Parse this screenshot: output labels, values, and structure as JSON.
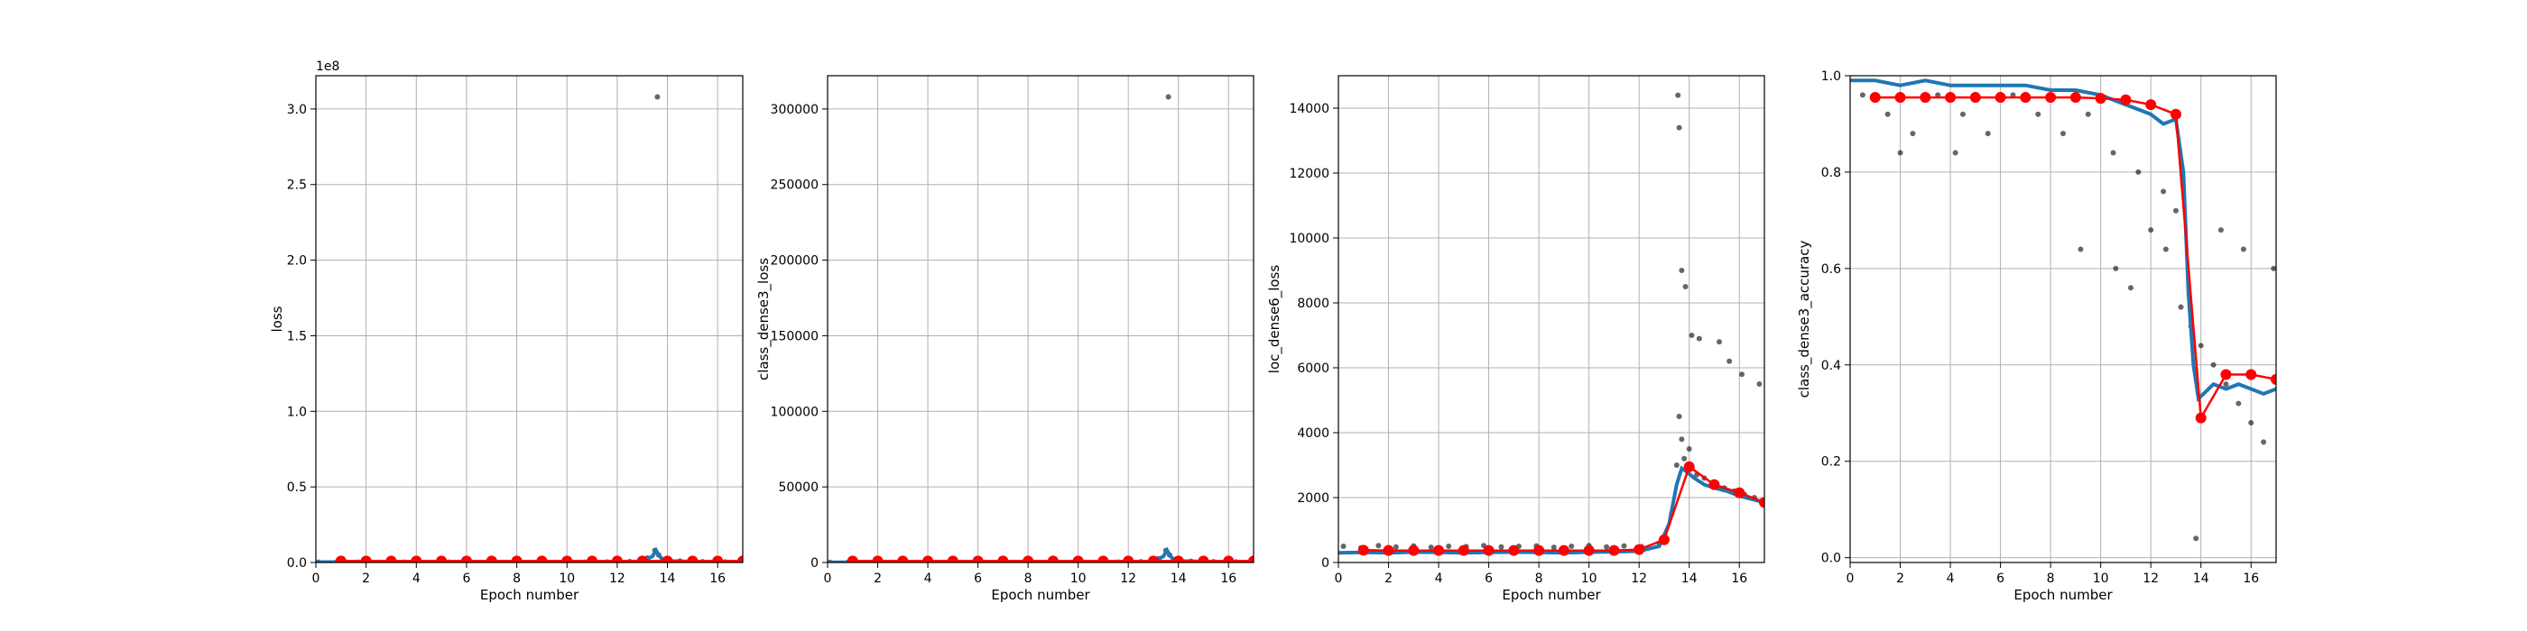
{
  "colors": {
    "scatter": "#000000",
    "smoothed": "#1f77b4",
    "epoch_mean": "#ff0000",
    "grid": "#b0b0b0"
  },
  "chart_data": [
    {
      "type": "scatter",
      "xlabel": "Epoch number",
      "ylabel": "loss",
      "offset_text": "1e8",
      "xlim": [
        0,
        17
      ],
      "ylim": [
        0,
        3.22
      ],
      "xticks": [
        0,
        2,
        4,
        6,
        8,
        10,
        12,
        14,
        16
      ],
      "yticks": [
        0.0,
        0.5,
        1.0,
        1.5,
        2.0,
        2.5,
        3.0
      ],
      "ytick_labels": [
        "0.0",
        "0.5",
        "1.0",
        "1.5",
        "2.0",
        "2.5",
        "3.0"
      ],
      "grid": true,
      "series": [
        {
          "type": "scatter",
          "x": [
            0.1,
            0.8,
            1.7,
            2.6,
            3.5,
            4.4,
            5.3,
            6.2,
            7.1,
            8.0,
            8.9,
            9.8,
            10.7,
            11.6,
            12.5,
            13.2,
            13.5,
            13.6,
            13.65,
            13.8,
            14.5,
            15.4,
            16.3,
            16.9
          ],
          "y": [
            0.002,
            0.001,
            0.002,
            0.001,
            0.002,
            0.001,
            0.002,
            0.001,
            0.002,
            0.001,
            0.002,
            0.001,
            0.002,
            0.004,
            0.006,
            0.03,
            0.08,
            3.08,
            0.05,
            0.02,
            0.01,
            0.005,
            0.004,
            0.003
          ]
        },
        {
          "type": "line",
          "x": [
            0,
            2,
            4,
            6,
            8,
            10,
            12,
            13,
            13.4,
            13.55,
            13.65,
            13.8,
            14,
            15,
            16,
            17
          ],
          "y": [
            0.003,
            0.003,
            0.003,
            0.003,
            0.003,
            0.003,
            0.004,
            0.008,
            0.04,
            0.08,
            0.05,
            0.02,
            0.01,
            0.006,
            0.005,
            0.005
          ]
        },
        {
          "type": "markers",
          "x": [
            1,
            2,
            3,
            4,
            5,
            6,
            7,
            8,
            9,
            10,
            11,
            12,
            13,
            14,
            15,
            16,
            17
          ],
          "y": [
            0.01,
            0.01,
            0.01,
            0.01,
            0.01,
            0.01,
            0.01,
            0.01,
            0.01,
            0.01,
            0.01,
            0.01,
            0.01,
            0.01,
            0.01,
            0.01,
            0.01
          ]
        }
      ]
    },
    {
      "type": "scatter",
      "xlabel": "Epoch number",
      "ylabel": "class_dense3_loss",
      "xlim": [
        0,
        17
      ],
      "ylim": [
        0,
        322000
      ],
      "xticks": [
        0,
        2,
        4,
        6,
        8,
        10,
        12,
        14,
        16
      ],
      "yticks": [
        0,
        50000,
        100000,
        150000,
        200000,
        250000,
        300000
      ],
      "ytick_labels": [
        "0",
        "50000",
        "100000",
        "150000",
        "200000",
        "250000",
        "300000"
      ],
      "grid": true,
      "series": [
        {
          "type": "scatter",
          "x": [
            0.1,
            0.8,
            1.7,
            2.6,
            3.5,
            4.4,
            5.3,
            6.2,
            7.1,
            8.0,
            8.9,
            9.8,
            10.7,
            11.6,
            12.5,
            13.2,
            13.5,
            13.6,
            13.65,
            13.8,
            14.5,
            15.4,
            16.3,
            16.9
          ],
          "y": [
            100,
            50,
            100,
            50,
            100,
            50,
            100,
            50,
            100,
            50,
            100,
            50,
            100,
            300,
            500,
            2500,
            8000,
            308000,
            5000,
            2000,
            800,
            500,
            400,
            300
          ]
        },
        {
          "type": "line",
          "x": [
            0,
            2,
            4,
            6,
            8,
            10,
            12,
            13,
            13.4,
            13.55,
            13.65,
            13.8,
            14,
            15,
            16,
            17
          ],
          "y": [
            200,
            200,
            200,
            200,
            200,
            200,
            300,
            700,
            4000,
            8000,
            5000,
            2000,
            1000,
            600,
            500,
            500
          ]
        },
        {
          "type": "markers",
          "x": [
            1,
            2,
            3,
            4,
            5,
            6,
            7,
            8,
            9,
            10,
            11,
            12,
            13,
            14,
            15,
            16,
            17
          ],
          "y": [
            1000,
            1000,
            1000,
            1000,
            1000,
            1000,
            1000,
            1000,
            1000,
            1000,
            1000,
            1000,
            1000,
            1000,
            1000,
            1000,
            1000
          ]
        }
      ]
    },
    {
      "type": "scatter",
      "xlabel": "Epoch number",
      "ylabel": "loc_dense6_loss",
      "xlim": [
        0,
        17
      ],
      "ylim": [
        0,
        15000
      ],
      "xticks": [
        0,
        2,
        4,
        6,
        8,
        10,
        12,
        14,
        16
      ],
      "yticks": [
        0,
        2000,
        4000,
        6000,
        8000,
        10000,
        12000,
        14000
      ],
      "ytick_labels": [
        "0",
        "2000",
        "4000",
        "6000",
        "8000",
        "10000",
        "12000",
        "14000"
      ],
      "grid": true,
      "series": [
        {
          "type": "scatter",
          "x": [
            0.2,
            0.9,
            1.6,
            2.3,
            3.0,
            3.7,
            4.4,
            5.1,
            5.8,
            6.5,
            7.2,
            7.9,
            8.6,
            9.3,
            10.0,
            10.7,
            11.4,
            12.1,
            12.8,
            13.3,
            13.5,
            13.6,
            13.7,
            13.8,
            13.9,
            14.0,
            14.3,
            14.6,
            15.0,
            15.4,
            15.8,
            16.2,
            16.6,
            17.0,
            13.55,
            13.6,
            13.7,
            13.85,
            14.1,
            14.4,
            15.2,
            15.6,
            16.1,
            16.8
          ],
          "y": [
            500,
            450,
            520,
            480,
            510,
            470,
            500,
            490,
            520,
            480,
            500,
            510,
            470,
            500,
            520,
            480,
            510,
            490,
            600,
            1500,
            3000,
            4500,
            3800,
            3200,
            2900,
            3500,
            2700,
            2600,
            2400,
            2300,
            2200,
            2100,
            2000,
            1900,
            14400,
            13400,
            9000,
            8500,
            7000,
            6900,
            6800,
            6200,
            5800,
            5500
          ]
        },
        {
          "type": "line",
          "x": [
            0,
            1,
            2,
            3,
            4,
            5,
            6,
            7,
            8,
            9,
            10,
            11,
            12,
            12.8,
            13.2,
            13.5,
            13.7,
            13.9,
            14.2,
            14.6,
            15,
            15.5,
            16,
            16.5,
            17
          ],
          "y": [
            300,
            310,
            300,
            320,
            310,
            300,
            310,
            320,
            310,
            300,
            320,
            330,
            350,
            500,
            1200,
            2400,
            2900,
            2800,
            2600,
            2400,
            2300,
            2200,
            2050,
            1950,
            1850
          ]
        },
        {
          "type": "markers",
          "x": [
            1,
            2,
            3,
            4,
            5,
            6,
            7,
            8,
            9,
            10,
            11,
            12,
            13,
            14,
            15,
            16,
            17
          ],
          "y": [
            380,
            370,
            370,
            370,
            370,
            370,
            370,
            370,
            370,
            370,
            370,
            400,
            700,
            2950,
            2400,
            2150,
            1850
          ]
        }
      ]
    },
    {
      "type": "scatter",
      "xlabel": "Epoch number",
      "ylabel": "class_dense3_accuracy",
      "xlim": [
        0,
        17
      ],
      "ylim": [
        -0.01,
        1.0
      ],
      "xticks": [
        0,
        2,
        4,
        6,
        8,
        10,
        12,
        14,
        16
      ],
      "yticks": [
        0.0,
        0.2,
        0.4,
        0.6,
        0.8,
        1.0
      ],
      "ytick_labels": [
        "0.0",
        "0.2",
        "0.4",
        "0.6",
        "0.8",
        "1.0"
      ],
      "grid": true,
      "series": [
        {
          "type": "scatter",
          "x": [
            0.5,
            1.5,
            2.5,
            3.5,
            4.5,
            5.5,
            6.5,
            7.5,
            8.5,
            9.5,
            10.5,
            11.5,
            12.5,
            13.0,
            2.0,
            4.2,
            9.2,
            10.6,
            11.2,
            12.0,
            12.6,
            13.2,
            13.6,
            14.0,
            14.5,
            15.0,
            15.5,
            16.0,
            16.5,
            14.8,
            15.7,
            16.9,
            13.8
          ],
          "y": [
            0.96,
            0.92,
            0.88,
            0.96,
            0.92,
            0.88,
            0.96,
            0.92,
            0.88,
            0.92,
            0.84,
            0.8,
            0.76,
            0.72,
            0.84,
            0.84,
            0.64,
            0.6,
            0.56,
            0.68,
            0.64,
            0.52,
            0.48,
            0.44,
            0.4,
            0.36,
            0.32,
            0.28,
            0.24,
            0.68,
            0.64,
            0.6,
            0.04
          ]
        },
        {
          "type": "line",
          "x": [
            0,
            1,
            2,
            3,
            4,
            5,
            6,
            7,
            8,
            9,
            10,
            10.5,
            11,
            11.5,
            12,
            12.5,
            13,
            13.3,
            13.5,
            13.7,
            13.9,
            14.1,
            14.5,
            15,
            15.5,
            16,
            16.5,
            17
          ],
          "y": [
            0.99,
            0.99,
            0.98,
            0.99,
            0.98,
            0.98,
            0.98,
            0.98,
            0.97,
            0.97,
            0.96,
            0.95,
            0.94,
            0.93,
            0.92,
            0.9,
            0.91,
            0.8,
            0.55,
            0.4,
            0.33,
            0.34,
            0.36,
            0.35,
            0.36,
            0.35,
            0.34,
            0.35
          ]
        },
        {
          "type": "markers",
          "x": [
            1,
            2,
            3,
            4,
            5,
            6,
            7,
            8,
            9,
            10,
            11,
            12,
            13,
            14,
            15,
            16,
            17
          ],
          "y": [
            0.955,
            0.955,
            0.955,
            0.955,
            0.955,
            0.955,
            0.955,
            0.955,
            0.955,
            0.953,
            0.95,
            0.94,
            0.92,
            0.29,
            0.38,
            0.38,
            0.37
          ]
        }
      ]
    }
  ]
}
